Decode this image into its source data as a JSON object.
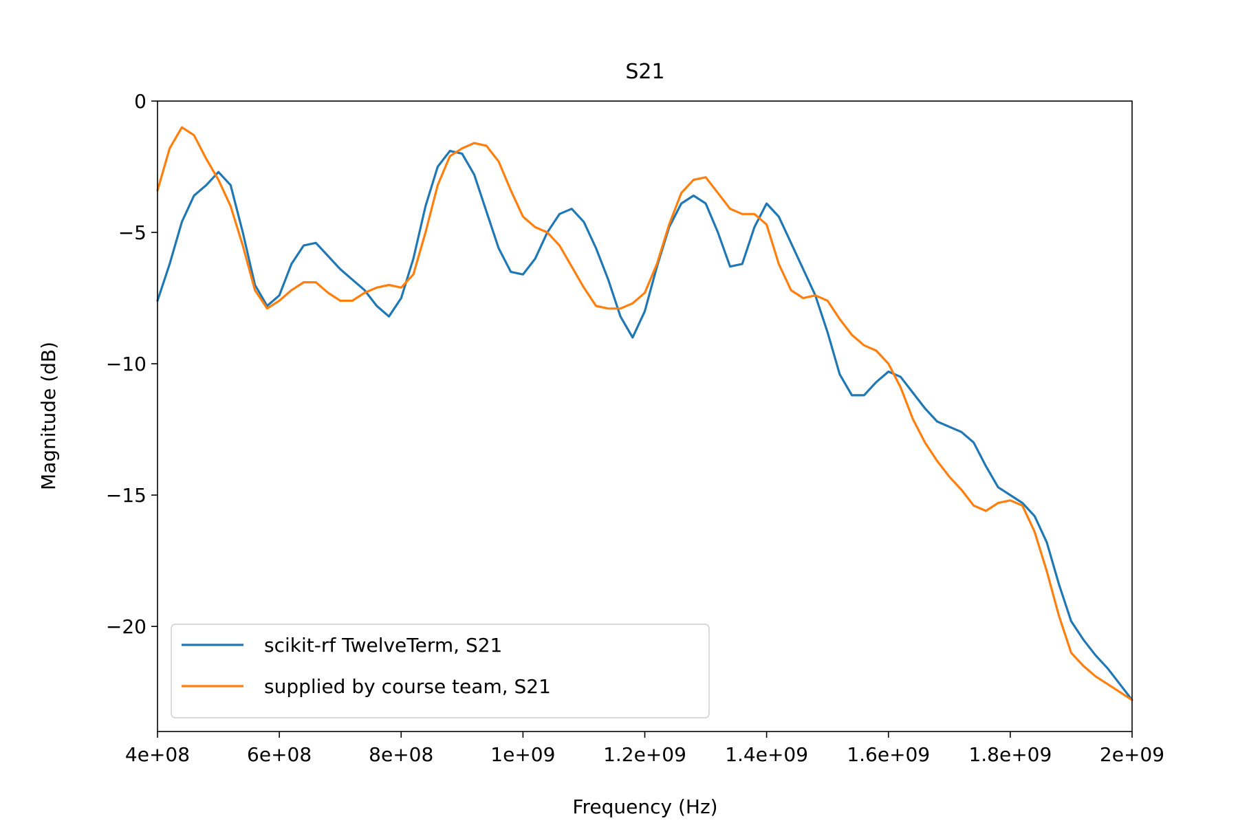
{
  "chart_data": {
    "type": "line",
    "title": "S21",
    "xlabel": "Frequency (Hz)",
    "ylabel": "Magnitude (dB)",
    "xlim": [
      400000000,
      2000000000
    ],
    "ylim": [
      -24,
      0
    ],
    "x_ticks": [
      {
        "value": 400000000,
        "label": "4e+08"
      },
      {
        "value": 600000000,
        "label": "6e+08"
      },
      {
        "value": 800000000,
        "label": "8e+08"
      },
      {
        "value": 1000000000,
        "label": "1e+09"
      },
      {
        "value": 1200000000,
        "label": "1.2e+09"
      },
      {
        "value": 1400000000,
        "label": "1.4e+09"
      },
      {
        "value": 1600000000,
        "label": "1.6e+09"
      },
      {
        "value": 1800000000,
        "label": "1.8e+09"
      },
      {
        "value": 2000000000,
        "label": "2e+09"
      }
    ],
    "y_ticks": [
      {
        "value": 0,
        "label": "0"
      },
      {
        "value": -5,
        "label": "−5"
      },
      {
        "value": -10,
        "label": "−10"
      },
      {
        "value": -15,
        "label": "−15"
      },
      {
        "value": -20,
        "label": "−20"
      }
    ],
    "grid": false,
    "legend_position": "lower-left",
    "series": [
      {
        "name": "scikit-rf TwelveTerm, S21",
        "color": "#1f77b4",
        "x": [
          400000000,
          420000000,
          440000000,
          460000000,
          480000000,
          500000000,
          520000000,
          540000000,
          560000000,
          580000000,
          600000000,
          620000000,
          640000000,
          660000000,
          680000000,
          700000000,
          720000000,
          740000000,
          760000000,
          780000000,
          800000000,
          820000000,
          840000000,
          860000000,
          880000000,
          900000000,
          920000000,
          940000000,
          960000000,
          980000000,
          1000000000,
          1020000000,
          1040000000,
          1060000000,
          1080000000,
          1100000000,
          1120000000,
          1140000000,
          1160000000,
          1180000000,
          1200000000,
          1220000000,
          1240000000,
          1260000000,
          1280000000,
          1300000000,
          1320000000,
          1340000000,
          1360000000,
          1380000000,
          1400000000,
          1420000000,
          1440000000,
          1460000000,
          1480000000,
          1500000000,
          1520000000,
          1540000000,
          1560000000,
          1580000000,
          1600000000,
          1620000000,
          1640000000,
          1660000000,
          1680000000,
          1700000000,
          1720000000,
          1740000000,
          1760000000,
          1780000000,
          1800000000,
          1820000000,
          1840000000,
          1860000000,
          1880000000,
          1900000000,
          1920000000,
          1940000000,
          1960000000,
          1980000000,
          2000000000
        ],
        "values": [
          -7.6,
          -6.2,
          -4.6,
          -3.6,
          -3.2,
          -2.7,
          -3.2,
          -5.0,
          -7.0,
          -7.8,
          -7.4,
          -6.2,
          -5.5,
          -5.4,
          -5.9,
          -6.4,
          -6.8,
          -7.2,
          -7.8,
          -8.2,
          -7.5,
          -6.0,
          -4.0,
          -2.5,
          -1.9,
          -2.0,
          -2.8,
          -4.2,
          -5.6,
          -6.5,
          -6.6,
          -6.0,
          -5.0,
          -4.3,
          -4.1,
          -4.6,
          -5.6,
          -6.8,
          -8.2,
          -9.0,
          -8.0,
          -6.3,
          -4.8,
          -3.9,
          -3.6,
          -3.9,
          -5.0,
          -6.3,
          -6.2,
          -4.8,
          -3.9,
          -4.4,
          -5.4,
          -6.4,
          -7.4,
          -8.8,
          -10.4,
          -11.2,
          -11.2,
          -10.7,
          -10.3,
          -10.5,
          -11.1,
          -11.7,
          -12.2,
          -12.4,
          -12.6,
          -13.0,
          -13.9,
          -14.7,
          -15.0,
          -15.3,
          -15.8,
          -16.8,
          -18.4,
          -19.8,
          -20.5,
          -21.1,
          -21.6,
          -22.2,
          -22.8
        ]
      },
      {
        "name": "supplied by course team, S21",
        "color": "#ff7f0e",
        "x": [
          400000000,
          420000000,
          440000000,
          460000000,
          480000000,
          500000000,
          520000000,
          540000000,
          560000000,
          580000000,
          600000000,
          620000000,
          640000000,
          660000000,
          680000000,
          700000000,
          720000000,
          740000000,
          760000000,
          780000000,
          800000000,
          820000000,
          840000000,
          860000000,
          880000000,
          900000000,
          920000000,
          940000000,
          960000000,
          980000000,
          1000000000,
          1020000000,
          1040000000,
          1060000000,
          1080000000,
          1100000000,
          1120000000,
          1140000000,
          1160000000,
          1180000000,
          1200000000,
          1220000000,
          1240000000,
          1260000000,
          1280000000,
          1300000000,
          1320000000,
          1340000000,
          1360000000,
          1380000000,
          1400000000,
          1420000000,
          1440000000,
          1460000000,
          1480000000,
          1500000000,
          1520000000,
          1540000000,
          1560000000,
          1580000000,
          1600000000,
          1620000000,
          1640000000,
          1660000000,
          1680000000,
          1700000000,
          1720000000,
          1740000000,
          1760000000,
          1780000000,
          1800000000,
          1820000000,
          1840000000,
          1860000000,
          1880000000,
          1900000000,
          1920000000,
          1940000000,
          1960000000,
          1980000000,
          2000000000
        ],
        "values": [
          -3.4,
          -1.8,
          -1.0,
          -1.3,
          -2.2,
          -3.0,
          -4.0,
          -5.5,
          -7.2,
          -7.9,
          -7.6,
          -7.2,
          -6.9,
          -6.9,
          -7.3,
          -7.6,
          -7.6,
          -7.3,
          -7.1,
          -7.0,
          -7.1,
          -6.6,
          -5.0,
          -3.2,
          -2.1,
          -1.8,
          -1.6,
          -1.7,
          -2.3,
          -3.4,
          -4.4,
          -4.8,
          -5.0,
          -5.5,
          -6.3,
          -7.1,
          -7.8,
          -7.9,
          -7.9,
          -7.7,
          -7.3,
          -6.2,
          -4.7,
          -3.5,
          -3.0,
          -2.9,
          -3.5,
          -4.1,
          -4.3,
          -4.3,
          -4.7,
          -6.2,
          -7.2,
          -7.5,
          -7.4,
          -7.6,
          -8.3,
          -8.9,
          -9.3,
          -9.5,
          -10.0,
          -10.9,
          -12.1,
          -13.0,
          -13.7,
          -14.3,
          -14.8,
          -15.4,
          -15.6,
          -15.3,
          -15.2,
          -15.4,
          -16.4,
          -17.9,
          -19.6,
          -21.0,
          -21.5,
          -21.9,
          -22.2,
          -22.5,
          -22.8
        ]
      }
    ]
  }
}
